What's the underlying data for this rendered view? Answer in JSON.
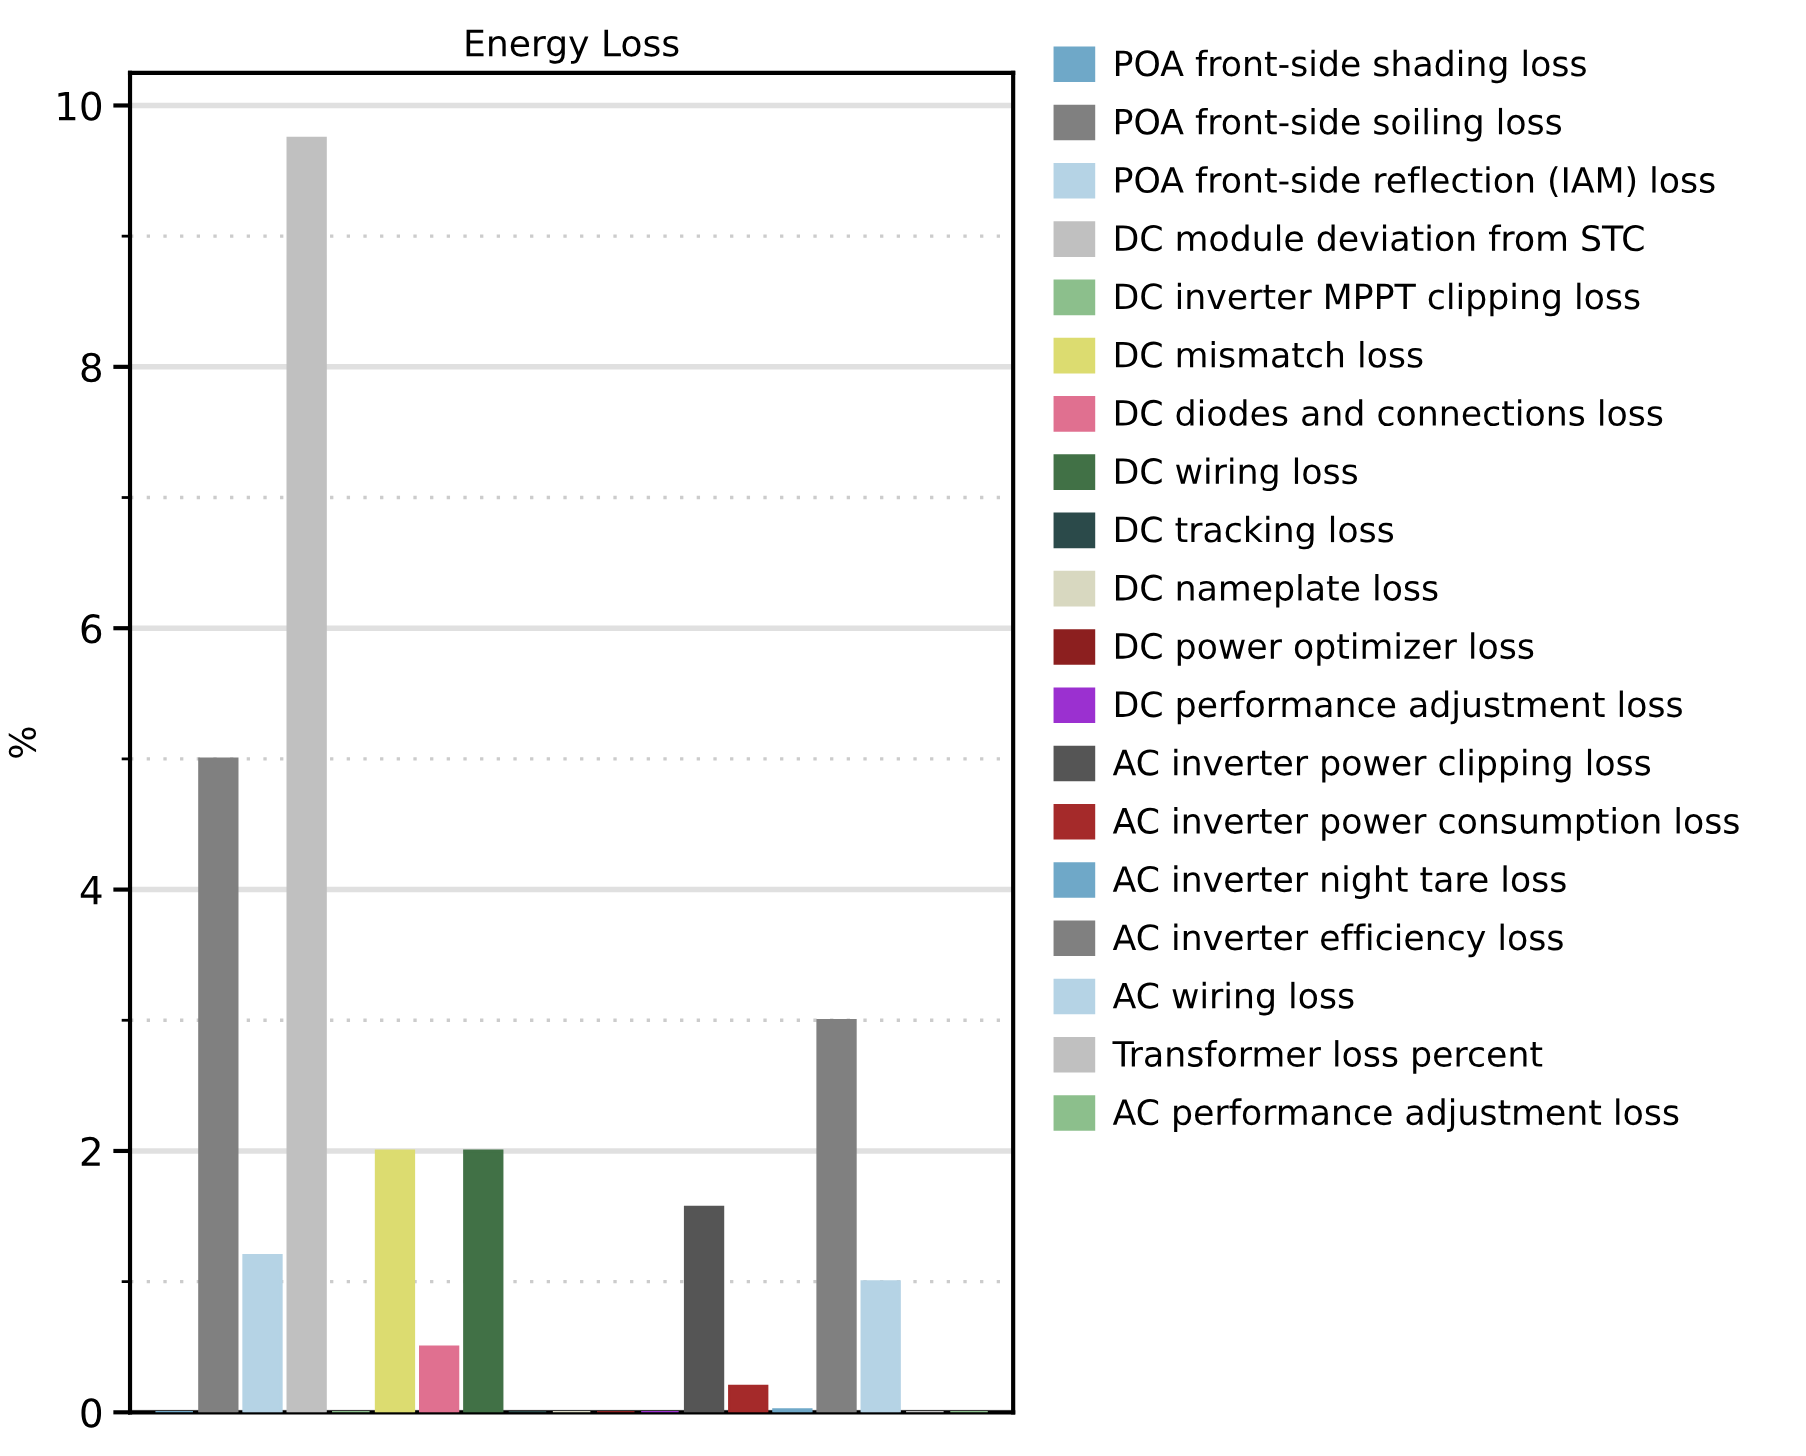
{
  "chart_data": {
    "type": "bar",
    "title": "Energy Loss",
    "ylabel": "%",
    "categories": [
      null,
      null,
      null,
      null,
      null,
      null,
      null,
      null,
      null,
      null,
      null,
      null,
      null,
      null,
      null,
      null,
      null,
      null,
      null
    ],
    "series": [
      {
        "name": "POA front-side shading loss",
        "color": "#6fa8c8",
        "values": [
          0,
          null,
          null,
          null,
          null,
          null,
          null,
          null,
          null,
          null,
          null,
          null,
          null,
          null,
          null,
          null,
          null,
          null,
          null
        ]
      },
      {
        "name": "POA front-side soiling loss",
        "color": "#808080",
        "values": [
          null,
          5,
          null,
          null,
          null,
          null,
          null,
          null,
          null,
          null,
          null,
          null,
          null,
          null,
          null,
          null,
          null,
          null,
          null
        ]
      },
      {
        "name": "POA front-side reflection (IAM) loss",
        "color": "#b5d3e5",
        "values": [
          null,
          null,
          1.2,
          null,
          null,
          null,
          null,
          null,
          null,
          null,
          null,
          null,
          null,
          null,
          null,
          null,
          null,
          null,
          null
        ]
      },
      {
        "name": "DC module deviation from STC",
        "color": "#c0c0c0",
        "values": [
          null,
          null,
          null,
          9.75,
          null,
          null,
          null,
          null,
          null,
          null,
          null,
          null,
          null,
          null,
          null,
          null,
          null,
          null,
          null
        ]
      },
      {
        "name": "DC inverter MPPT clipping loss",
        "color": "#8cbf8c",
        "values": [
          null,
          null,
          null,
          null,
          0,
          null,
          null,
          null,
          null,
          null,
          null,
          null,
          null,
          null,
          null,
          null,
          null,
          null,
          null
        ]
      },
      {
        "name": "DC mismatch loss",
        "color": "#dcdc70",
        "values": [
          null,
          null,
          null,
          null,
          null,
          2,
          null,
          null,
          null,
          null,
          null,
          null,
          null,
          null,
          null,
          null,
          null,
          null,
          null
        ]
      },
      {
        "name": "DC diodes and connections loss",
        "color": "#e07090",
        "values": [
          null,
          null,
          null,
          null,
          null,
          null,
          0.5,
          null,
          null,
          null,
          null,
          null,
          null,
          null,
          null,
          null,
          null,
          null,
          null
        ]
      },
      {
        "name": "DC wiring loss",
        "color": "#417146",
        "values": [
          null,
          null,
          null,
          null,
          null,
          null,
          null,
          2,
          null,
          null,
          null,
          null,
          null,
          null,
          null,
          null,
          null,
          null,
          null
        ]
      },
      {
        "name": "DC tracking loss",
        "color": "#2b4a4a",
        "values": [
          null,
          null,
          null,
          null,
          null,
          null,
          null,
          null,
          0,
          null,
          null,
          null,
          null,
          null,
          null,
          null,
          null,
          null,
          null
        ]
      },
      {
        "name": "DC nameplate loss",
        "color": "#d8d8c0",
        "values": [
          null,
          null,
          null,
          null,
          null,
          null,
          null,
          null,
          null,
          0,
          null,
          null,
          null,
          null,
          null,
          null,
          null,
          null,
          null
        ]
      },
      {
        "name": "DC power optimizer loss",
        "color": "#8c1f1f",
        "values": [
          null,
          null,
          null,
          null,
          null,
          null,
          null,
          null,
          null,
          null,
          0,
          null,
          null,
          null,
          null,
          null,
          null,
          null,
          null
        ]
      },
      {
        "name": "DC performance adjustment loss",
        "color": "#9b30d0",
        "values": [
          null,
          null,
          null,
          null,
          null,
          null,
          null,
          null,
          null,
          null,
          null,
          0,
          null,
          null,
          null,
          null,
          null,
          null,
          null
        ]
      },
      {
        "name": "AC inverter power clipping loss",
        "color": "#555555",
        "values": [
          null,
          null,
          null,
          null,
          null,
          null,
          null,
          null,
          null,
          null,
          null,
          null,
          1.57,
          null,
          null,
          null,
          null,
          null,
          null
        ]
      },
      {
        "name": "AC inverter power consumption loss",
        "color": "#a52a2a",
        "values": [
          null,
          null,
          null,
          null,
          null,
          null,
          null,
          null,
          null,
          null,
          null,
          null,
          null,
          0.2,
          null,
          null,
          null,
          null,
          null
        ]
      },
      {
        "name": "AC inverter night tare loss",
        "color": "#6fa8c8",
        "values": [
          null,
          null,
          null,
          null,
          null,
          null,
          null,
          null,
          null,
          null,
          null,
          null,
          null,
          null,
          0.02,
          null,
          null,
          null,
          null
        ]
      },
      {
        "name": "AC inverter efficiency loss",
        "color": "#808080",
        "values": [
          null,
          null,
          null,
          null,
          null,
          null,
          null,
          null,
          null,
          null,
          null,
          null,
          null,
          null,
          null,
          3,
          null,
          null,
          null
        ]
      },
      {
        "name": "AC wiring loss",
        "color": "#b5d3e5",
        "values": [
          null,
          null,
          null,
          null,
          null,
          null,
          null,
          null,
          null,
          null,
          null,
          null,
          null,
          null,
          null,
          null,
          1,
          null,
          null
        ]
      },
      {
        "name": "Transformer loss percent",
        "color": "#c0c0c0",
        "values": [
          null,
          null,
          null,
          null,
          null,
          null,
          null,
          null,
          null,
          null,
          null,
          null,
          null,
          null,
          null,
          null,
          null,
          0,
          null
        ]
      },
      {
        "name": "AC performance adjustment loss",
        "color": "#8cbf8c",
        "values": [
          null,
          null,
          null,
          null,
          null,
          null,
          null,
          null,
          null,
          null,
          null,
          null,
          null,
          null,
          null,
          null,
          null,
          null,
          0
        ]
      }
    ],
    "ylim": [
      0,
      10.25
    ],
    "yticks": [
      0,
      {
        "value": 1,
        "label": null
      },
      2,
      {
        "value": 3,
        "label": null
      },
      4,
      {
        "value": 5,
        "label": null
      },
      6,
      {
        "value": 7,
        "label": null
      },
      8,
      {
        "value": 9,
        "label": null
      },
      10
    ],
    "grid": "y",
    "legend": "right"
  }
}
